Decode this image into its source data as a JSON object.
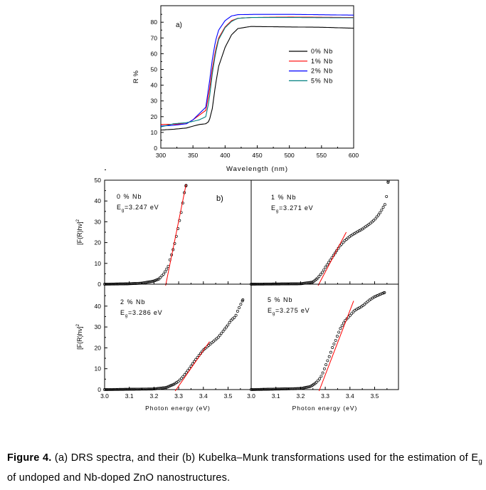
{
  "chart_data": [
    {
      "type": "line",
      "panel_label": "a)",
      "xlabel": "Wavelength (nm)",
      "ylabel": "R %",
      "xlim": [
        300,
        600
      ],
      "ylim": [
        0,
        90
      ],
      "xticks": [
        "300",
        "350",
        "400",
        "450",
        "500",
        "550",
        "600"
      ],
      "yticks": [
        "0",
        "10",
        "20",
        "30",
        "40",
        "50",
        "60",
        "70",
        "80"
      ],
      "legend_position": "center-right",
      "series": [
        {
          "name": "0% Nb",
          "color": "#000000",
          "x": [
            300,
            320,
            340,
            350,
            360,
            370,
            375,
            380,
            385,
            390,
            400,
            410,
            420,
            440,
            500,
            550,
            600
          ],
          "y": [
            11.5,
            12,
            12.8,
            14,
            15,
            15.5,
            17,
            25,
            40,
            52,
            64,
            72,
            76,
            77.3,
            77,
            76.8,
            76.2
          ]
        },
        {
          "name": "1% Nb",
          "color": "#ff0000",
          "x": [
            300,
            320,
            340,
            350,
            360,
            370,
            375,
            380,
            385,
            390,
            400,
            410,
            420,
            440,
            500,
            600
          ],
          "y": [
            15,
            15.2,
            15.5,
            18,
            21,
            24,
            35,
            50,
            62,
            70,
            77,
            81,
            82.5,
            83,
            83.3,
            83
          ]
        },
        {
          "name": "2% Nb",
          "color": "#0000ff",
          "x": [
            300,
            320,
            340,
            350,
            360,
            370,
            375,
            380,
            385,
            390,
            400,
            410,
            420,
            450,
            500,
            600
          ],
          "y": [
            14,
            14.5,
            15.5,
            18,
            22,
            26,
            40,
            56,
            68,
            75,
            81,
            84,
            84.8,
            85,
            85,
            84.5
          ]
        },
        {
          "name": "5% Nb",
          "color": "#008080",
          "x": [
            300,
            320,
            340,
            350,
            360,
            370,
            375,
            380,
            385,
            390,
            400,
            410,
            420,
            440,
            500,
            600
          ],
          "y": [
            13.5,
            15.5,
            16.2,
            17,
            18,
            20,
            30,
            47,
            60,
            69,
            76.5,
            80.5,
            82.5,
            83,
            83,
            82.8
          ]
        }
      ]
    },
    {
      "type": "scatter",
      "panel_label": "b)",
      "xlabel": "Photon energy (eV)",
      "ylabel": "[F(R)hν]",
      "ylabel_sup": "2",
      "xlim": [
        3.0,
        3.6
      ],
      "xticks": [
        "3.0",
        "3.1",
        "3.2",
        "3.3",
        "3.4",
        "3.5"
      ],
      "yticks_top": [
        "0",
        "10",
        "20",
        "30",
        "40",
        "50"
      ],
      "yticks_bottom": [
        "0",
        "10",
        "20",
        "30",
        "40"
      ],
      "fit_color": "#ff0000",
      "panels": [
        {
          "label": "0 % Nb",
          "eg_symbol": "E",
          "eg_sub": "g",
          "eg_text": "=3.247 eV",
          "eg": 3.247,
          "x": [
            3.0,
            3.1,
            3.15,
            3.2,
            3.22,
            3.24,
            3.25,
            3.26,
            3.265,
            3.275,
            3.285,
            3.295,
            3.305,
            3.315,
            3.32,
            3.33
          ],
          "y": [
            0,
            0.2,
            0.5,
            1.5,
            2.5,
            5,
            7,
            9,
            12,
            15.5,
            20,
            25.5,
            31.5,
            37.5,
            42.5,
            47.5
          ],
          "fit": [
            [
              3.247,
              0
            ],
            [
              3.33,
              48
            ]
          ]
        },
        {
          "label": "1 % Nb",
          "eg_symbol": "E",
          "eg_sub": "g",
          "eg_text": "=3.271 eV",
          "eg": 3.271,
          "x": [
            3.0,
            3.2,
            3.25,
            3.27,
            3.29,
            3.3,
            3.32,
            3.34,
            3.36,
            3.38,
            3.4,
            3.42,
            3.45,
            3.48,
            3.5,
            3.52,
            3.54,
            3.545,
            3.555
          ],
          "y": [
            0,
            0.2,
            1,
            3,
            6,
            8,
            11.5,
            15,
            18.5,
            21,
            23,
            24.5,
            26.5,
            29,
            31,
            34,
            38,
            39,
            49.5
          ],
          "fit": [
            [
              3.271,
              0
            ],
            [
              3.385,
              25
            ]
          ]
        },
        {
          "label": "2 % Nb",
          "eg_symbol": "E",
          "eg_sub": "g",
          "eg_text": "=3.286 eV",
          "eg": 3.286,
          "x": [
            3.0,
            3.2,
            3.25,
            3.28,
            3.3,
            3.32,
            3.34,
            3.36,
            3.38,
            3.4,
            3.42,
            3.44,
            3.46,
            3.48,
            3.5,
            3.51,
            3.53,
            3.54,
            3.55,
            3.56
          ],
          "y": [
            0,
            0.3,
            1,
            2.5,
            4,
            6.5,
            9.5,
            13,
            16,
            19,
            21,
            23,
            25,
            28,
            31,
            33,
            35,
            38,
            40.5,
            43
          ],
          "fit": [
            [
              3.286,
              0
            ],
            [
              3.425,
              23
            ]
          ]
        },
        {
          "label": "5 % Nb",
          "eg_symbol": "E",
          "eg_sub": "g",
          "eg_text": "=3.275 eV",
          "eg": 3.275,
          "x": [
            3.0,
            3.2,
            3.24,
            3.26,
            3.28,
            3.29,
            3.3,
            3.31,
            3.32,
            3.33,
            3.34,
            3.35,
            3.36,
            3.37,
            3.38,
            3.4,
            3.42,
            3.45,
            3.48,
            3.5,
            3.52,
            3.54
          ],
          "y": [
            0,
            0.5,
            1.5,
            3,
            5.5,
            8,
            11,
            14,
            17,
            20.5,
            23,
            26,
            29,
            31,
            33,
            35.5,
            38,
            40,
            43,
            44.5,
            45.5,
            46.5
          ],
          "fit": [
            [
              3.275,
              0
            ],
            [
              3.415,
              42.5
            ]
          ]
        }
      ]
    }
  ],
  "caption": {
    "label": "Figure 4.",
    "text1": " (a) DRS spectra, and their (b) Kubelka–Munk transformations used for the estimation of ",
    "eg_symbol": "E",
    "eg_sub": "g",
    "text2": " of undoped and Nb-doped ZnO nanostructures."
  }
}
